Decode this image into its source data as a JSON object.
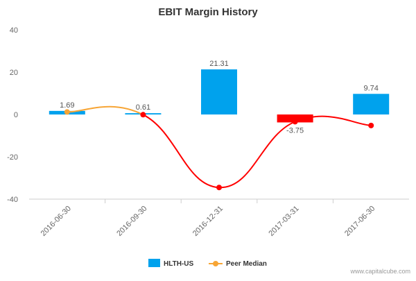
{
  "chart_data": {
    "type": "bar",
    "title": "EBIT Margin History",
    "categories": [
      "2016-06-30",
      "2016-09-30",
      "2016-12-31",
      "2017-03-31",
      "2017-06-30"
    ],
    "series": [
      {
        "name": "HLTH-US",
        "kind": "bar",
        "values": [
          1.69,
          0.61,
          21.31,
          -3.75,
          9.74
        ],
        "data_labels": [
          "1.69",
          "0.61",
          "21.31",
          "-3.75",
          "9.74"
        ],
        "positive_color": "#00a2ed",
        "negative_color": "#ff0000"
      },
      {
        "name": "Peer Median",
        "kind": "line",
        "values": [
          1.2,
          -0.1,
          -34.5,
          -3.4,
          -5.2
        ],
        "point_colors": [
          "#f7a535",
          "#ff0000",
          "#ff0000",
          "#ff0000",
          "#ff0000"
        ],
        "line_colors": [
          "#f7a535",
          "#ff0000"
        ]
      }
    ],
    "ylim": [
      -40,
      40
    ],
    "yticks": [
      "40",
      "20",
      "0",
      "-20",
      "-40"
    ],
    "xlabel": "",
    "ylabel": "",
    "grid": false,
    "legend_position": "bottom-center"
  },
  "legend": {
    "items": [
      {
        "label": "HLTH-US",
        "color": "#00a2ed"
      },
      {
        "label": "Peer Median",
        "color": "#f7a535"
      }
    ]
  },
  "credit": "www.capitalcube.com"
}
